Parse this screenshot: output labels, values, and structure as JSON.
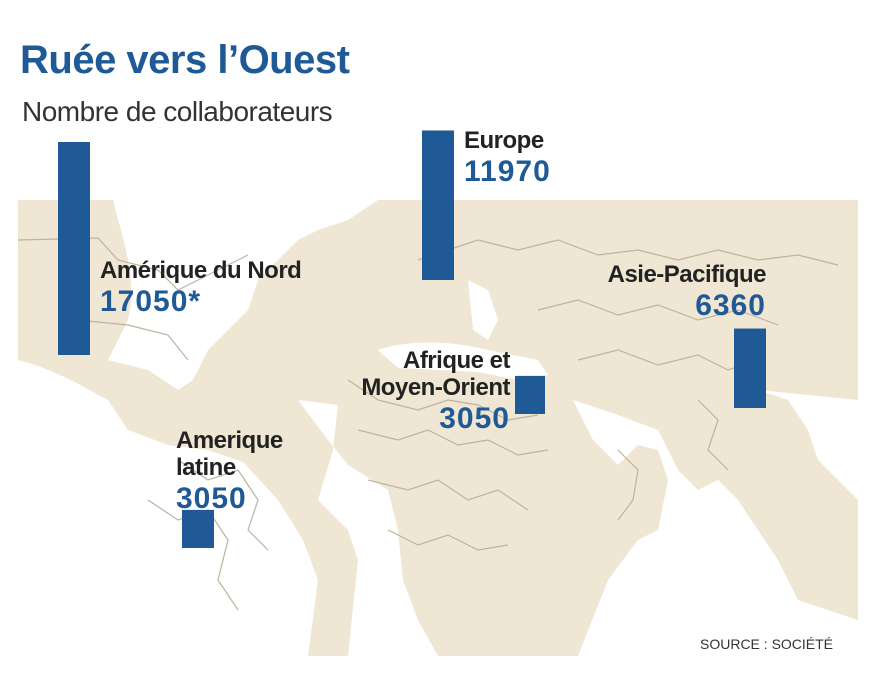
{
  "title": "Ruée vers l’Ouest",
  "subtitle": "Nombre de collaborateurs",
  "source": "SOURCE : SOCIÉTÉ",
  "colors": {
    "accent": "#1f5a96",
    "map_land": "#efe6d4",
    "map_sea": "#ffffff",
    "map_borders": "#bdb3a0"
  },
  "chart_data": {
    "type": "bar",
    "title": "Ruée vers l’Ouest",
    "subtitle": "Nombre de collaborateurs",
    "categories": [
      "Amérique du Nord",
      "Europe",
      "Asie-Pacifique",
      "Afrique et Moyen-Orient",
      "Amerique latine"
    ],
    "values": [
      17050,
      11970,
      6360,
      3050,
      3050
    ],
    "value_labels": [
      "17050*",
      "11970",
      "6360",
      "3050",
      "3050"
    ],
    "background": "world-map"
  }
}
